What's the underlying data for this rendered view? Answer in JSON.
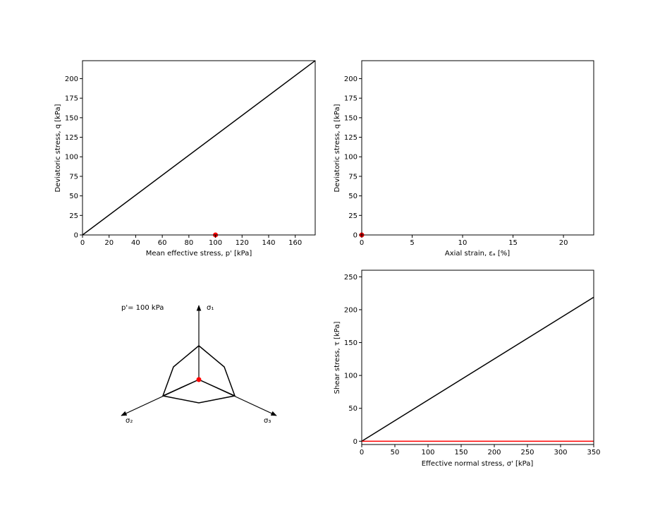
{
  "chart_data": [
    {
      "type": "line",
      "xlabel": "Mean effective stress, p' [kPa]",
      "ylabel": "Deviatoric stress, q [kPa]",
      "xlim": [
        0,
        175
      ],
      "ylim": [
        0,
        223
      ],
      "xticks": [
        0,
        20,
        40,
        60,
        80,
        100,
        120,
        140,
        160
      ],
      "yticks": [
        0,
        25,
        50,
        75,
        100,
        125,
        150,
        175,
        200
      ],
      "series": [
        {
          "color": "#000000",
          "x": [
            0,
            175
          ],
          "y": [
            0,
            223
          ]
        }
      ],
      "points": [
        {
          "x": 100,
          "y": 0,
          "color": "#ff0000"
        }
      ]
    },
    {
      "type": "line",
      "xlabel": "Axial strain, εₐ [%]",
      "ylabel": "Deviatoric stress, q [kPa]",
      "xlim": [
        0,
        23
      ],
      "ylim": [
        0,
        223
      ],
      "xticks": [
        0,
        5,
        10,
        15,
        20
      ],
      "yticks": [
        0,
        25,
        50,
        75,
        100,
        125,
        150,
        175,
        200
      ],
      "series": [],
      "points": [
        {
          "x": 0,
          "y": 0,
          "color": "#ff0000"
        }
      ]
    },
    {
      "type": "diagram",
      "annotation": "p'= 100 kPa",
      "axes": [
        "σ₁",
        "σ₂",
        "σ₃"
      ],
      "point_color": "#ff0000"
    },
    {
      "type": "line",
      "xlabel": "Effective normal stress, σ' [kPa]",
      "ylabel": "Shear stress,  τ [kPa]",
      "xlim": [
        0,
        350
      ],
      "ylim": [
        -5,
        260
      ],
      "xticks": [
        0,
        50,
        100,
        150,
        200,
        250,
        300,
        350
      ],
      "yticks": [
        0,
        50,
        100,
        150,
        200,
        250
      ],
      "series": [
        {
          "color": "#000000",
          "x": [
            0,
            350
          ],
          "y": [
            0,
            219
          ]
        },
        {
          "color": "#ff0000",
          "x": [
            0,
            350
          ],
          "y": [
            0,
            0
          ]
        }
      ]
    }
  ]
}
